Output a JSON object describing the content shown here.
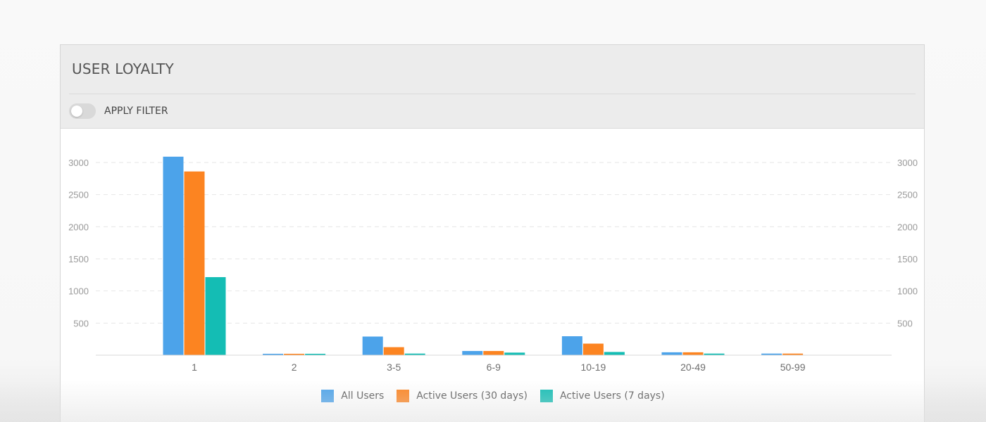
{
  "card": {
    "title": "USER LOYALTY",
    "filter_label": "APPLY FILTER",
    "filter_on": false
  },
  "colors": {
    "all_users": "#4ca3ea",
    "active_30": "#fc8421",
    "active_7": "#14bdb4"
  },
  "chart_data": {
    "type": "bar",
    "categories": [
      "1",
      "2",
      "3-5",
      "6-9",
      "10-19",
      "20-49",
      "50-99"
    ],
    "series": [
      {
        "name": "All Users",
        "color": "#4ca3ea",
        "values": [
          3090,
          20,
          290,
          65,
          295,
          45,
          25
        ]
      },
      {
        "name": "Active Users (30 days)",
        "color": "#fc8421",
        "values": [
          2860,
          20,
          125,
          65,
          180,
          45,
          25
        ]
      },
      {
        "name": "Active Users (7 days)",
        "color": "#14bdb4",
        "values": [
          1215,
          10,
          25,
          40,
          50,
          25,
          0
        ]
      }
    ],
    "ylim": [
      0,
      3000
    ],
    "y_ticks": [
      500,
      1000,
      1500,
      2000,
      2500,
      3000
    ],
    "y_tick_labels": [
      "500",
      "1000",
      "1500",
      "2000",
      "2500",
      "3000"
    ],
    "grid": "dashed horizontal",
    "legend_position": "bottom-center",
    "dual_axis_labels": true
  }
}
